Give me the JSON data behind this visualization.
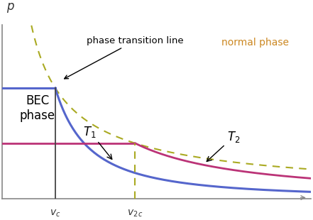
{
  "figsize": [
    4.41,
    3.1
  ],
  "dpi": 100,
  "bg_color": "#ffffff",
  "vc": 1.0,
  "v2c": 2.5,
  "p1": 0.7,
  "p2": 0.35,
  "xlim": [
    0.0,
    5.8
  ],
  "ylim": [
    0.0,
    1.1
  ],
  "alpha1": 1.6,
  "alpha2": 1.2,
  "alpha_phase": 2.8,
  "line_color_T1": "#5566cc",
  "line_color_T2": "#bb3377",
  "line_color_phase": "#aaaa22",
  "text_color_normal": "#cc8822",
  "text_color_bec": "#000000",
  "text_color_transition": "#000000",
  "spine_color": "#888888",
  "vline_color": "#444444"
}
